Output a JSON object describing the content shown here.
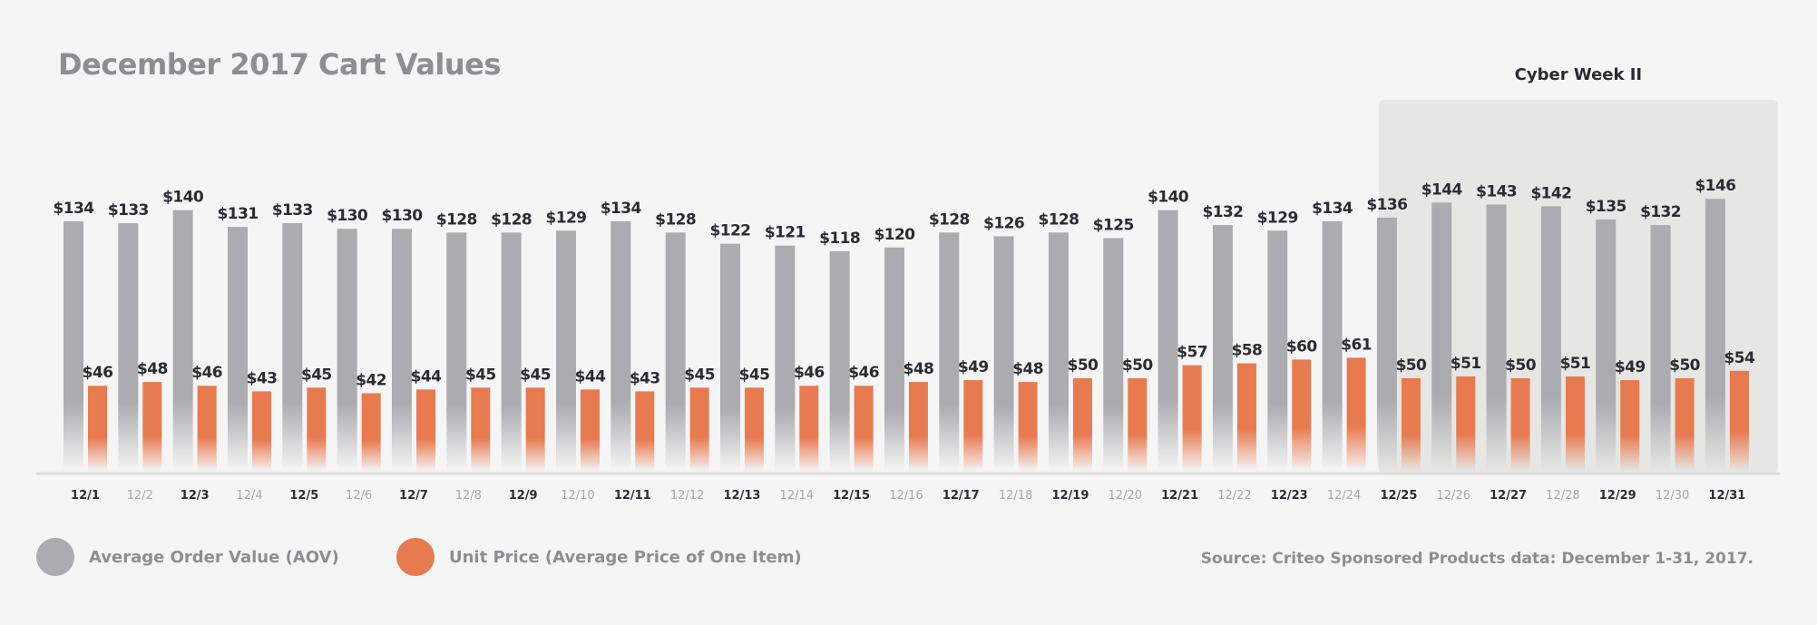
{
  "chart_data": {
    "type": "bar",
    "title": "December 2017 Cart Values",
    "categories": [
      "12/1",
      "12/2",
      "12/3",
      "12/4",
      "12/5",
      "12/6",
      "12/7",
      "12/8",
      "12/9",
      "12/10",
      "12/11",
      "12/12",
      "12/13",
      "12/14",
      "12/15",
      "12/16",
      "12/17",
      "12/18",
      "12/19",
      "12/20",
      "12/21",
      "12/22",
      "12/23",
      "12/24",
      "12/25",
      "12/26",
      "12/27",
      "12/28",
      "12/29",
      "12/30",
      "12/31"
    ],
    "series": [
      {
        "name": "Average Order Value (AOV)",
        "color": "#ababb0",
        "values": [
          134,
          133,
          140,
          131,
          133,
          130,
          130,
          128,
          128,
          129,
          134,
          128,
          122,
          121,
          118,
          120,
          128,
          126,
          128,
          125,
          140,
          132,
          129,
          134,
          136,
          144,
          143,
          142,
          135,
          132,
          146
        ]
      },
      {
        "name": "Unit Price (Average Price of One Item)",
        "color": "#e87a50",
        "values": [
          46,
          48,
          46,
          43,
          45,
          42,
          44,
          45,
          45,
          44,
          43,
          45,
          45,
          46,
          46,
          48,
          49,
          48,
          50,
          50,
          57,
          58,
          60,
          61,
          50,
          51,
          50,
          51,
          49,
          50,
          54
        ]
      }
    ],
    "value_prefix": "$",
    "highlight": {
      "label": "Cyber Week II",
      "from": "12/25",
      "to": "12/31"
    },
    "legend_position": "bottom-left",
    "grid": false
  },
  "source": "Source: Criteo Sponsored Products data: December 1-31, 2017."
}
